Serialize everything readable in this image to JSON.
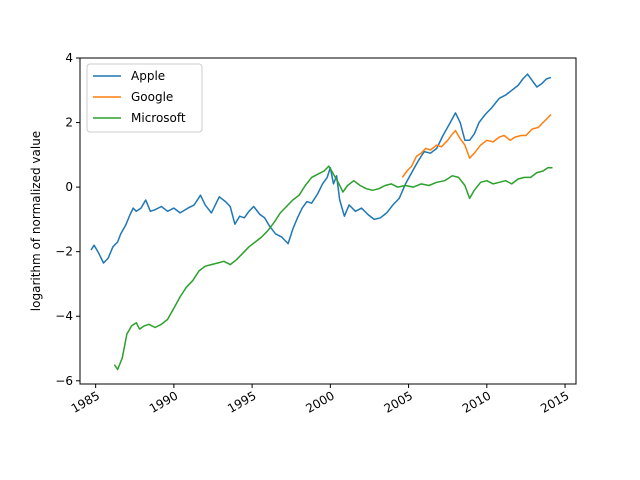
{
  "chart_data": {
    "type": "line",
    "title": "",
    "xlabel": "",
    "ylabel": "logarithm of normalized value",
    "xlim": [
      1984.0,
      2015.7
    ],
    "ylim": [
      -6.1,
      4.0
    ],
    "x_ticks": [
      1985,
      1990,
      1995,
      2000,
      2005,
      2010,
      2015
    ],
    "x_tick_labels": [
      "1985",
      "1990",
      "1995",
      "2000",
      "2005",
      "2010",
      "2015"
    ],
    "y_ticks": [
      -6,
      -4,
      -2,
      0,
      2,
      4
    ],
    "y_tick_labels": [
      "−6",
      "−4",
      "−2",
      "0",
      "2",
      "4"
    ],
    "grid": false,
    "legend_position": "top-left",
    "series": [
      {
        "name": "Apple",
        "color": "#1f77b4",
        "points": [
          [
            1984.7,
            -1.95
          ],
          [
            1984.9,
            -1.8
          ],
          [
            1985.2,
            -2.05
          ],
          [
            1985.5,
            -2.35
          ],
          [
            1985.8,
            -2.2
          ],
          [
            1986.1,
            -1.85
          ],
          [
            1986.4,
            -1.7
          ],
          [
            1986.6,
            -1.45
          ],
          [
            1986.9,
            -1.2
          ],
          [
            1987.2,
            -0.85
          ],
          [
            1987.4,
            -0.65
          ],
          [
            1987.6,
            -0.75
          ],
          [
            1987.9,
            -0.65
          ],
          [
            1988.2,
            -0.4
          ],
          [
            1988.5,
            -0.75
          ],
          [
            1988.8,
            -0.7
          ],
          [
            1989.2,
            -0.6
          ],
          [
            1989.6,
            -0.75
          ],
          [
            1990.0,
            -0.65
          ],
          [
            1990.4,
            -0.8
          ],
          [
            1990.9,
            -0.65
          ],
          [
            1991.3,
            -0.55
          ],
          [
            1991.7,
            -0.25
          ],
          [
            1992.0,
            -0.55
          ],
          [
            1992.4,
            -0.8
          ],
          [
            1992.9,
            -0.3
          ],
          [
            1993.3,
            -0.45
          ],
          [
            1993.6,
            -0.6
          ],
          [
            1993.9,
            -1.15
          ],
          [
            1994.2,
            -0.9
          ],
          [
            1994.5,
            -0.95
          ],
          [
            1994.8,
            -0.75
          ],
          [
            1995.1,
            -0.6
          ],
          [
            1995.5,
            -0.85
          ],
          [
            1995.8,
            -0.95
          ],
          [
            1996.1,
            -1.2
          ],
          [
            1996.5,
            -1.45
          ],
          [
            1996.9,
            -1.55
          ],
          [
            1997.3,
            -1.75
          ],
          [
            1997.6,
            -1.3
          ],
          [
            1997.9,
            -0.95
          ],
          [
            1998.2,
            -0.65
          ],
          [
            1998.5,
            -0.45
          ],
          [
            1998.8,
            -0.5
          ],
          [
            1999.2,
            -0.2
          ],
          [
            1999.5,
            0.1
          ],
          [
            1999.8,
            0.3
          ],
          [
            2000.0,
            0.6
          ],
          [
            2000.2,
            0.1
          ],
          [
            2000.4,
            0.35
          ],
          [
            2000.6,
            -0.4
          ],
          [
            2000.9,
            -0.9
          ],
          [
            2001.2,
            -0.55
          ],
          [
            2001.6,
            -0.75
          ],
          [
            2002.0,
            -0.65
          ],
          [
            2002.4,
            -0.85
          ],
          [
            2002.8,
            -1.0
          ],
          [
            2003.2,
            -0.95
          ],
          [
            2003.6,
            -0.8
          ],
          [
            2004.0,
            -0.55
          ],
          [
            2004.4,
            -0.35
          ],
          [
            2004.8,
            0.1
          ],
          [
            2005.2,
            0.45
          ],
          [
            2005.6,
            0.8
          ],
          [
            2006.0,
            1.1
          ],
          [
            2006.4,
            1.05
          ],
          [
            2006.8,
            1.2
          ],
          [
            2007.2,
            1.6
          ],
          [
            2007.6,
            1.95
          ],
          [
            2008.0,
            2.3
          ],
          [
            2008.3,
            2.0
          ],
          [
            2008.6,
            1.45
          ],
          [
            2008.9,
            1.45
          ],
          [
            2009.2,
            1.65
          ],
          [
            2009.5,
            2.0
          ],
          [
            2009.9,
            2.25
          ],
          [
            2010.3,
            2.45
          ],
          [
            2010.8,
            2.75
          ],
          [
            2011.2,
            2.85
          ],
          [
            2011.6,
            3.0
          ],
          [
            2012.0,
            3.15
          ],
          [
            2012.3,
            3.35
          ],
          [
            2012.6,
            3.5
          ],
          [
            2012.9,
            3.3
          ],
          [
            2013.2,
            3.1
          ],
          [
            2013.5,
            3.2
          ],
          [
            2013.8,
            3.35
          ],
          [
            2014.1,
            3.4
          ]
        ]
      },
      {
        "name": "Google",
        "color": "#ff7f0e",
        "points": [
          [
            2004.6,
            0.3
          ],
          [
            2004.9,
            0.5
          ],
          [
            2005.2,
            0.65
          ],
          [
            2005.5,
            0.95
          ],
          [
            2005.8,
            1.05
          ],
          [
            2006.1,
            1.2
          ],
          [
            2006.4,
            1.15
          ],
          [
            2006.8,
            1.3
          ],
          [
            2007.1,
            1.25
          ],
          [
            2007.5,
            1.45
          ],
          [
            2007.8,
            1.65
          ],
          [
            2008.0,
            1.75
          ],
          [
            2008.3,
            1.5
          ],
          [
            2008.6,
            1.3
          ],
          [
            2008.9,
            0.9
          ],
          [
            2009.2,
            1.05
          ],
          [
            2009.6,
            1.3
          ],
          [
            2010.0,
            1.45
          ],
          [
            2010.4,
            1.4
          ],
          [
            2010.8,
            1.55
          ],
          [
            2011.1,
            1.6
          ],
          [
            2011.5,
            1.45
          ],
          [
            2011.8,
            1.55
          ],
          [
            2012.2,
            1.6
          ],
          [
            2012.5,
            1.6
          ],
          [
            2012.9,
            1.8
          ],
          [
            2013.3,
            1.85
          ],
          [
            2013.7,
            2.05
          ],
          [
            2014.1,
            2.25
          ]
        ]
      },
      {
        "name": "Microsoft",
        "color": "#2ca02c",
        "points": [
          [
            1986.2,
            -5.5
          ],
          [
            1986.4,
            -5.65
          ],
          [
            1986.7,
            -5.3
          ],
          [
            1987.0,
            -4.55
          ],
          [
            1987.3,
            -4.3
          ],
          [
            1987.6,
            -4.2
          ],
          [
            1987.8,
            -4.4
          ],
          [
            1988.1,
            -4.3
          ],
          [
            1988.4,
            -4.25
          ],
          [
            1988.8,
            -4.35
          ],
          [
            1989.2,
            -4.25
          ],
          [
            1989.6,
            -4.1
          ],
          [
            1990.0,
            -3.75
          ],
          [
            1990.4,
            -3.4
          ],
          [
            1990.8,
            -3.1
          ],
          [
            1991.2,
            -2.9
          ],
          [
            1991.6,
            -2.6
          ],
          [
            1992.0,
            -2.45
          ],
          [
            1992.4,
            -2.4
          ],
          [
            1992.8,
            -2.35
          ],
          [
            1993.2,
            -2.3
          ],
          [
            1993.6,
            -2.4
          ],
          [
            1994.0,
            -2.25
          ],
          [
            1994.4,
            -2.05
          ],
          [
            1994.8,
            -1.85
          ],
          [
            1995.2,
            -1.7
          ],
          [
            1995.6,
            -1.55
          ],
          [
            1996.0,
            -1.35
          ],
          [
            1996.4,
            -1.1
          ],
          [
            1996.8,
            -0.8
          ],
          [
            1997.2,
            -0.6
          ],
          [
            1997.6,
            -0.4
          ],
          [
            1998.0,
            -0.25
          ],
          [
            1998.4,
            0.05
          ],
          [
            1998.8,
            0.3
          ],
          [
            1999.2,
            0.4
          ],
          [
            1999.6,
            0.5
          ],
          [
            1999.9,
            0.65
          ],
          [
            2000.2,
            0.4
          ],
          [
            2000.5,
            0.15
          ],
          [
            2000.8,
            -0.15
          ],
          [
            2001.1,
            0.05
          ],
          [
            2001.5,
            0.2
          ],
          [
            2001.9,
            0.05
          ],
          [
            2002.3,
            -0.05
          ],
          [
            2002.7,
            -0.1
          ],
          [
            2003.1,
            -0.05
          ],
          [
            2003.5,
            0.05
          ],
          [
            2003.9,
            0.1
          ],
          [
            2004.3,
            0.0
          ],
          [
            2004.8,
            0.05
          ],
          [
            2005.3,
            0.0
          ],
          [
            2005.8,
            0.1
          ],
          [
            2006.3,
            0.05
          ],
          [
            2006.8,
            0.15
          ],
          [
            2007.3,
            0.2
          ],
          [
            2007.8,
            0.35
          ],
          [
            2008.2,
            0.3
          ],
          [
            2008.6,
            0.05
          ],
          [
            2008.9,
            -0.35
          ],
          [
            2009.2,
            -0.1
          ],
          [
            2009.6,
            0.15
          ],
          [
            2010.0,
            0.2
          ],
          [
            2010.4,
            0.1
          ],
          [
            2010.8,
            0.15
          ],
          [
            2011.2,
            0.2
          ],
          [
            2011.6,
            0.1
          ],
          [
            2012.0,
            0.25
          ],
          [
            2012.4,
            0.3
          ],
          [
            2012.8,
            0.3
          ],
          [
            2013.2,
            0.45
          ],
          [
            2013.6,
            0.5
          ],
          [
            2013.9,
            0.6
          ],
          [
            2014.2,
            0.6
          ]
        ]
      }
    ]
  }
}
